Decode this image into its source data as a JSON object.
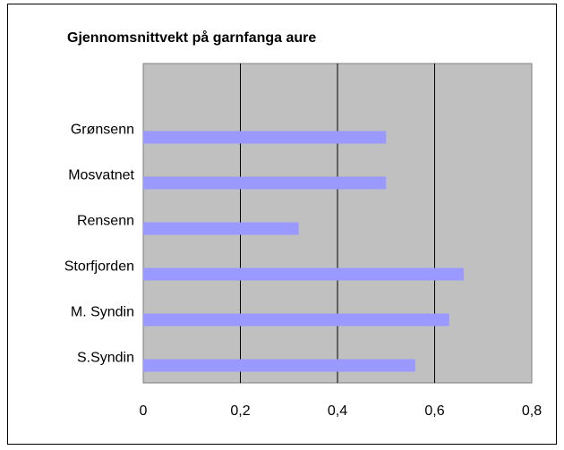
{
  "chart_data": {
    "type": "bar",
    "orientation": "horizontal",
    "title": "Gjennomsnittvekt på garnfanga aure",
    "categories": [
      "Grønsenn",
      "Mosvatnet",
      "Rensenn",
      "Storfjorden",
      "M. Syndin",
      "S.Syndin"
    ],
    "values": [
      0.5,
      0.5,
      0.32,
      0.66,
      0.63,
      0.56
    ],
    "color": "#9999ff",
    "xlim": [
      0,
      0.8
    ],
    "xticks": [
      0,
      {
        "value": 0.2,
        "label": "0,2"
      },
      {
        "value": 0.4,
        "label": "0,4"
      },
      {
        "value": 0.6,
        "label": "0,6"
      },
      {
        "value": 0.8,
        "label": "0,8"
      }
    ],
    "grid": true
  }
}
